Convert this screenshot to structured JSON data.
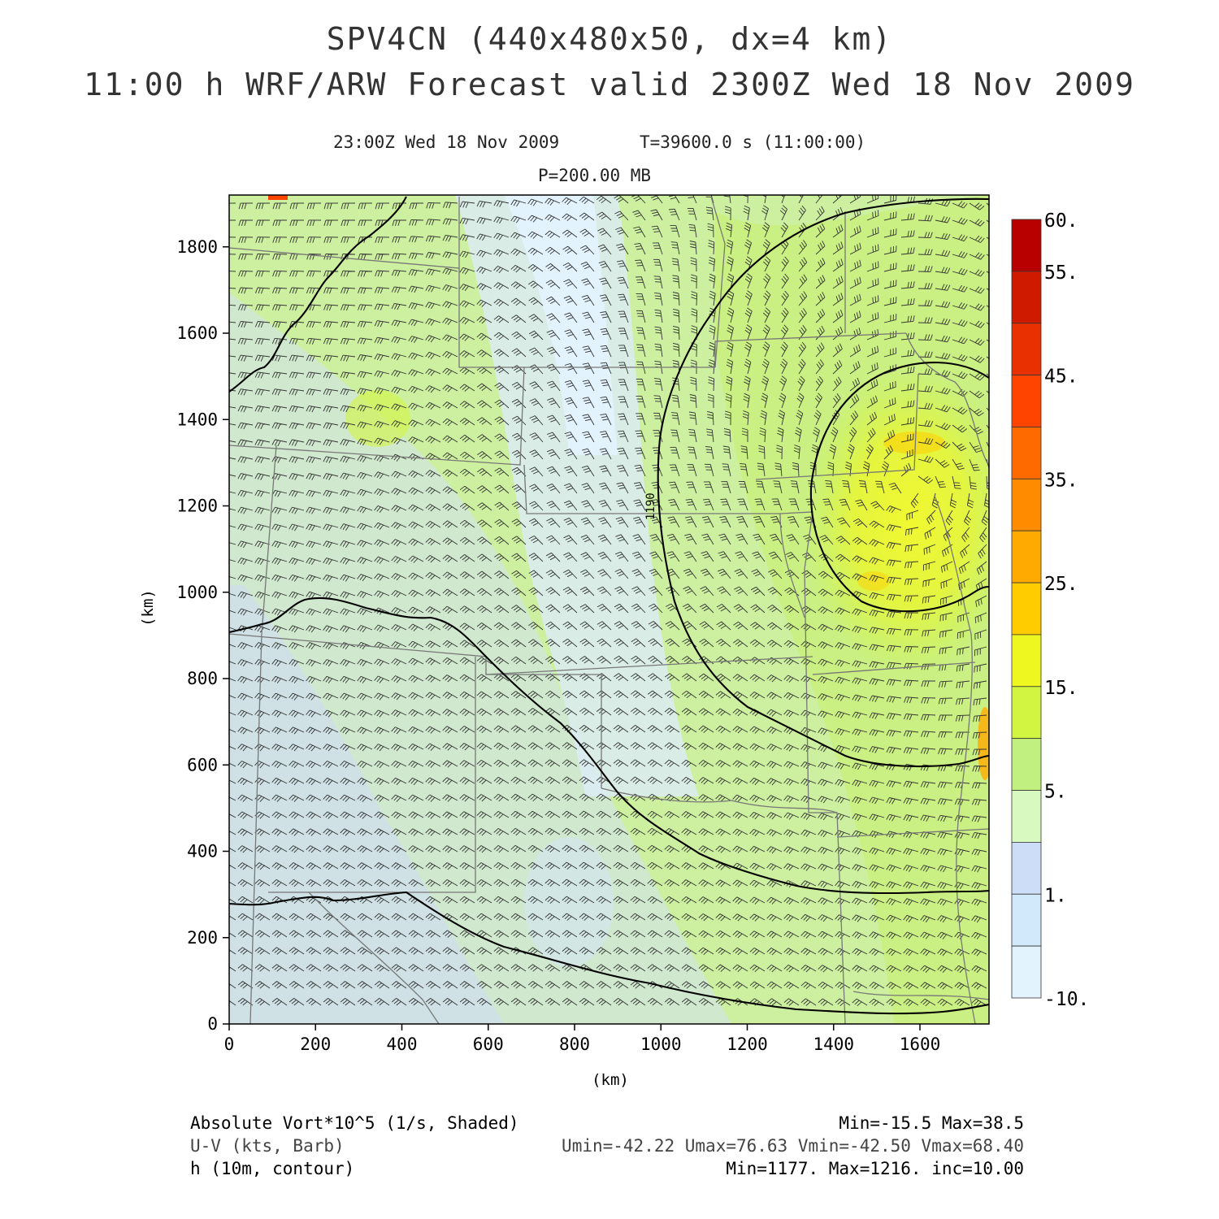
{
  "header": {
    "title_line1": "SPV4CN (440x480x50, dx=4 km)",
    "title_line2": "11:00 h WRF/ARW Forecast valid 2300Z Wed 18 Nov 2009",
    "valid_time": "23:00Z Wed 18 Nov 2009",
    "model_time": "T=39600.0 s (11:00:00)",
    "level": "P=200.00 MB"
  },
  "axes": {
    "x_label": "(km)",
    "y_label": "(km)",
    "x_ticks": [
      "0",
      "200",
      "400",
      "600",
      "800",
      "1000",
      "1200",
      "1400",
      "1600"
    ],
    "y_ticks": [
      "0",
      "200",
      "400",
      "600",
      "800",
      "1000",
      "1200",
      "1400",
      "1600",
      "1800"
    ],
    "x_range_km": [
      0,
      1760
    ],
    "y_range_km": [
      0,
      1920
    ]
  },
  "colorbar": {
    "labels": [
      "60.",
      "55.",
      "45.",
      "35.",
      "25.",
      "15.",
      "5.",
      "1.",
      "-10."
    ],
    "colors": [
      "#b80000",
      "#d01a00",
      "#e83000",
      "#ff4400",
      "#ff6a00",
      "#ff8c00",
      "#ffaa00",
      "#ffcc00",
      "#eef820",
      "#d2f542",
      "#c2f080",
      "#d8fac0",
      "#cddcf7",
      "#d2e9fb",
      "#e2f3fd"
    ]
  },
  "contour_label": "1190",
  "footer": {
    "field1_name": "Absolute Vort*10^5 (1/s, Shaded)",
    "field1_stats": "Min=-15.5 Max=38.5",
    "field2_name": "U-V (kts, Barb)",
    "field2_stats": "Umin=-42.22 Umax=76.63 Vmin=-42.50 Vmax=68.40",
    "field3_name": "h (10m, contour)",
    "field3_stats": "Min=1177. Max=1216. inc=10.00"
  }
}
